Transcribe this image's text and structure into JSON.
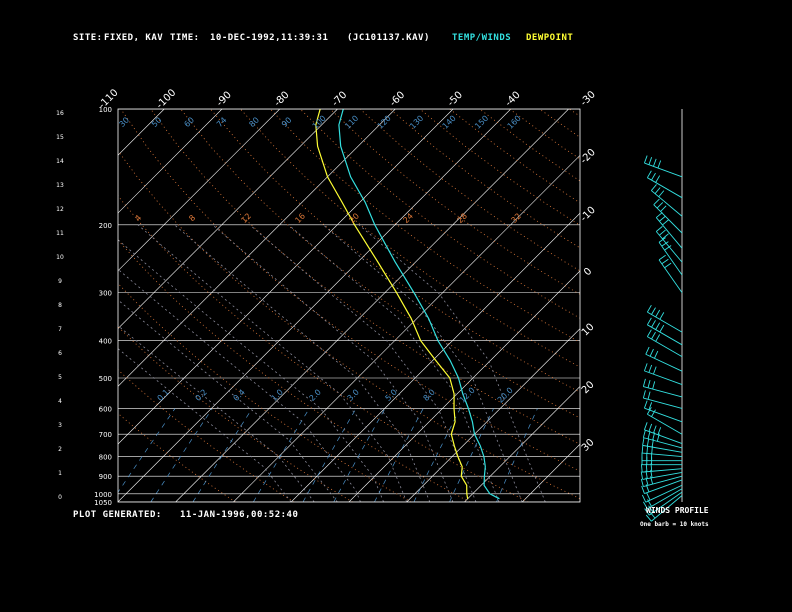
{
  "header": {
    "site_label": "SITE:",
    "site_value": "FIXED, KAV",
    "time_label": "TIME:",
    "time_value": "10-DEC-1992,11:39:31",
    "file": "(JC101137.KAV)",
    "temp_label": "TEMP/WINDS",
    "dew_label": "DEWPOINT"
  },
  "footer": {
    "generated_label": "PLOT GENERATED:",
    "generated_value": "11-JAN-1996,00:52:40"
  },
  "wind_panel": {
    "title": "WINDS PROFILE",
    "subtitle": "One barb = 10 knots"
  },
  "colors": {
    "background": "#000000",
    "grid": "#ffffff",
    "temperature": "#33e0e0",
    "dewpoint": "#ffff33",
    "dry_adiabat": "#e07a3a",
    "moist_adiabat": "#8a8a9a",
    "mixing_ratio": "#4a90c8",
    "winds": "#33e0e0"
  },
  "chart_data": {
    "type": "line",
    "diagram": "skew-T log-P",
    "pressure_range_mb": [
      1050,
      100
    ],
    "temperature_range_c": [
      -40,
      40
    ],
    "isobars_mb": [
      100,
      200,
      300,
      400,
      500,
      600,
      700,
      800,
      900,
      1000,
      1050
    ],
    "isotherm_labels": [
      "-110",
      "-100",
      "-90",
      "-80",
      "-70",
      "-60",
      "-50",
      "-40",
      "-30",
      "-20",
      "-10",
      "0",
      "10",
      "20",
      "30"
    ],
    "height_ticks_km": [
      "0",
      "1",
      "2",
      "3",
      "4",
      "5",
      "6",
      "7",
      "8",
      "9",
      "10",
      "11",
      "12",
      "13",
      "14",
      "15",
      "16"
    ],
    "theta_labels": [
      {
        "t": "30",
        "p": 125
      },
      {
        "t": "50",
        "p": 118
      },
      {
        "t": "60",
        "p": 118
      },
      {
        "t": "74",
        "p": 118
      },
      {
        "t": "80",
        "p": 118
      },
      {
        "t": "90",
        "p": 118
      },
      {
        "t": "100",
        "p": 118
      },
      {
        "t": "110",
        "p": 118
      },
      {
        "t": "120",
        "p": 118
      },
      {
        "t": "130",
        "p": 118
      },
      {
        "t": "140",
        "p": 118
      },
      {
        "t": "150",
        "p": 118
      },
      {
        "t": "160",
        "p": 118
      }
    ],
    "theta_e_labels": [
      "4",
      "8",
      "12",
      "16",
      "20",
      "24",
      "28",
      "32"
    ],
    "mixing_ratio_labels": [
      "0.1",
      "0.2",
      "0.4",
      "1.0",
      "2.0",
      "3.0",
      "5.0",
      "8.0",
      "12.0",
      "20.0"
    ],
    "series": [
      {
        "name": "TEMP/WINDS",
        "points": [
          {
            "p": 1030,
            "t": 25.5
          },
          {
            "p": 1000,
            "t": 23.0
          },
          {
            "p": 950,
            "t": 20.5
          },
          {
            "p": 900,
            "t": 19.0
          },
          {
            "p": 850,
            "t": 17.5
          },
          {
            "p": 800,
            "t": 15.5
          },
          {
            "p": 750,
            "t": 13.0
          },
          {
            "p": 700,
            "t": 10.0
          },
          {
            "p": 650,
            "t": 7.5
          },
          {
            "p": 600,
            "t": 4.5
          },
          {
            "p": 550,
            "t": 1.0
          },
          {
            "p": 500,
            "t": -2.5
          },
          {
            "p": 450,
            "t": -7.0
          },
          {
            "p": 400,
            "t": -12.5
          },
          {
            "p": 350,
            "t": -18.0
          },
          {
            "p": 300,
            "t": -25.0
          },
          {
            "p": 250,
            "t": -33.5
          },
          {
            "p": 200,
            "t": -43.5
          },
          {
            "p": 175,
            "t": -49.0
          },
          {
            "p": 150,
            "t": -56.0
          },
          {
            "p": 125,
            "t": -63.0
          },
          {
            "p": 110,
            "t": -67.0
          },
          {
            "p": 100,
            "t": -69.0
          }
        ]
      },
      {
        "name": "DEWPOINT",
        "points": [
          {
            "p": 1030,
            "t": 20.0
          },
          {
            "p": 1000,
            "t": 19.0
          },
          {
            "p": 950,
            "t": 17.5
          },
          {
            "p": 900,
            "t": 15.0
          },
          {
            "p": 850,
            "t": 13.5
          },
          {
            "p": 800,
            "t": 11.0
          },
          {
            "p": 750,
            "t": 8.5
          },
          {
            "p": 700,
            "t": 6.0
          },
          {
            "p": 650,
            "t": 4.5
          },
          {
            "p": 600,
            "t": 2.0
          },
          {
            "p": 550,
            "t": -0.5
          },
          {
            "p": 500,
            "t": -4.0
          },
          {
            "p": 450,
            "t": -9.5
          },
          {
            "p": 400,
            "t": -15.5
          },
          {
            "p": 350,
            "t": -21.0
          },
          {
            "p": 300,
            "t": -28.0
          },
          {
            "p": 250,
            "t": -36.5
          },
          {
            "p": 200,
            "t": -47.0
          },
          {
            "p": 175,
            "t": -53.0
          },
          {
            "p": 150,
            "t": -60.0
          },
          {
            "p": 125,
            "t": -67.0
          },
          {
            "p": 110,
            "t": -71.0
          },
          {
            "p": 100,
            "t": -73.0
          }
        ]
      }
    ],
    "winds": [
      {
        "p": 1010,
        "dir": 230,
        "spd": 15
      },
      {
        "p": 990,
        "dir": 235,
        "spd": 15
      },
      {
        "p": 970,
        "dir": 240,
        "spd": 20
      },
      {
        "p": 950,
        "dir": 245,
        "spd": 20
      },
      {
        "p": 920,
        "dir": 250,
        "spd": 20
      },
      {
        "p": 900,
        "dir": 255,
        "spd": 25
      },
      {
        "p": 880,
        "dir": 260,
        "spd": 25
      },
      {
        "p": 860,
        "dir": 265,
        "spd": 25
      },
      {
        "p": 840,
        "dir": 270,
        "spd": 30
      },
      {
        "p": 820,
        "dir": 270,
        "spd": 30
      },
      {
        "p": 800,
        "dir": 275,
        "spd": 30
      },
      {
        "p": 780,
        "dir": 280,
        "spd": 30
      },
      {
        "p": 760,
        "dir": 285,
        "spd": 35
      },
      {
        "p": 740,
        "dir": 290,
        "spd": 35
      },
      {
        "p": 700,
        "dir": 300,
        "spd": 20
      },
      {
        "p": 650,
        "dir": 290,
        "spd": 20
      },
      {
        "p": 600,
        "dir": 285,
        "spd": 20
      },
      {
        "p": 560,
        "dir": 285,
        "spd": 25
      },
      {
        "p": 520,
        "dir": 290,
        "spd": 25
      },
      {
        "p": 480,
        "dir": 295,
        "spd": 30
      },
      {
        "p": 440,
        "dir": 300,
        "spd": 30
      },
      {
        "p": 410,
        "dir": 300,
        "spd": 35
      },
      {
        "p": 380,
        "dir": 300,
        "spd": 35
      },
      {
        "p": 300,
        "dir": 325,
        "spd": 25
      },
      {
        "p": 270,
        "dir": 325,
        "spd": 25
      },
      {
        "p": 250,
        "dir": 320,
        "spd": 25
      },
      {
        "p": 230,
        "dir": 320,
        "spd": 25
      },
      {
        "p": 210,
        "dir": 315,
        "spd": 30
      },
      {
        "p": 190,
        "dir": 310,
        "spd": 30
      },
      {
        "p": 170,
        "dir": 300,
        "spd": 25
      },
      {
        "p": 150,
        "dir": 290,
        "spd": 40
      }
    ]
  }
}
